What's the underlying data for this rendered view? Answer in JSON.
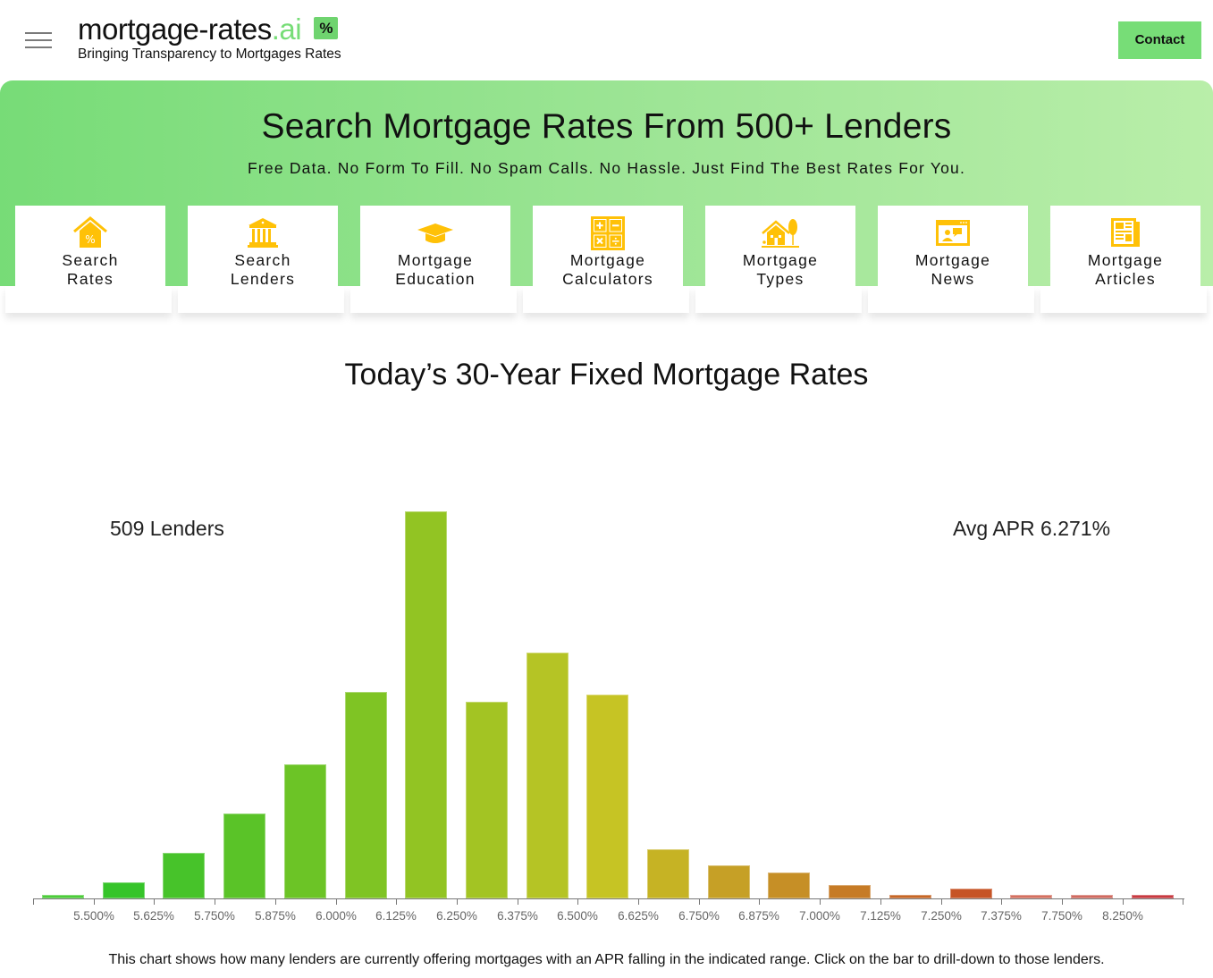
{
  "header": {
    "logo_main": "mortgage-rates",
    "logo_accent": ".ai",
    "logo_badge": "%",
    "tagline": "Bringing Transparency to Mortgages Rates",
    "contact_label": "Contact",
    "menu_icon": "hamburger-icon"
  },
  "hero": {
    "title": "Search Mortgage Rates From 500+ Lenders",
    "subtitle": "Free Data. No Form To Fill. No Spam Calls. No Hassle. Just Find The Best Rates For You."
  },
  "nav_cards": [
    {
      "line1": "Search",
      "line2": "Rates",
      "icon": "house-percent-icon"
    },
    {
      "line1": "Search",
      "line2": "Lenders",
      "icon": "bank-icon"
    },
    {
      "line1": "Mortgage",
      "line2": "Education",
      "icon": "graduation-cap-icon"
    },
    {
      "line1": "Mortgage",
      "line2": "Calculators",
      "icon": "calculator-icon"
    },
    {
      "line1": "Mortgage",
      "line2": "Types",
      "icon": "house-tree-icon"
    },
    {
      "line1": "Mortgage",
      "line2": "News",
      "icon": "news-screen-icon"
    },
    {
      "line1": "Mortgage",
      "line2": "Articles",
      "icon": "newspaper-icon"
    }
  ],
  "colors": {
    "brand_green": "#77dd77",
    "icon_yellow": "#ffc107",
    "axis_gray": "#777777"
  },
  "chart_data": {
    "type": "bar",
    "title": "Today’s 30-Year Fixed Mortgage Rates",
    "annotations": {
      "lenders_count": "509 Lenders",
      "avg_apr": "Avg APR 6.271%"
    },
    "xlabel": "",
    "ylabel": "",
    "tick_labels": [
      "5.500%",
      "5.625%",
      "5.750%",
      "5.875%",
      "6.000%",
      "6.125%",
      "6.250%",
      "6.375%",
      "6.500%",
      "6.625%",
      "6.750%",
      "6.875%",
      "7.000%",
      "7.125%",
      "7.250%",
      "7.375%",
      "7.750%",
      "8.250%"
    ],
    "categories": [
      "<5.500%",
      "5.500-5.625%",
      "5.625-5.750%",
      "5.750-5.875%",
      "5.875-6.000%",
      "6.000-6.125%",
      "6.125-6.250%",
      "6.250-6.375%",
      "6.375-6.500%",
      "6.500-6.625%",
      "6.625-6.750%",
      "6.750-6.875%",
      "6.875-7.000%",
      "7.000-7.125%",
      "7.125-7.250%",
      "7.250-7.375%",
      "7.375-7.750%",
      "7.750-8.250%",
      ">8.250%"
    ],
    "values": [
      1,
      5,
      14,
      26,
      41,
      63,
      118,
      60,
      75,
      62,
      15,
      10,
      8,
      4,
      1,
      3,
      1,
      1,
      1
    ],
    "colors": [
      "#4ccc3a",
      "#36c42a",
      "#47c32a",
      "#5ac328",
      "#6cc426",
      "#7fc424",
      "#92c423",
      "#a3c423",
      "#b5c425",
      "#c6c424",
      "#c6b324",
      "#c6a026",
      "#c68f26",
      "#c67b26",
      "#c66626",
      "#c65426",
      "#d47060",
      "#d06a60",
      "#c83a40"
    ],
    "ylim": [
      0,
      120
    ],
    "grid": false,
    "legend": "none",
    "note": "This chart shows how many lenders are currently offering mortgages with an APR falling in the indicated range. Click on the bar to drill-down to those lenders."
  }
}
